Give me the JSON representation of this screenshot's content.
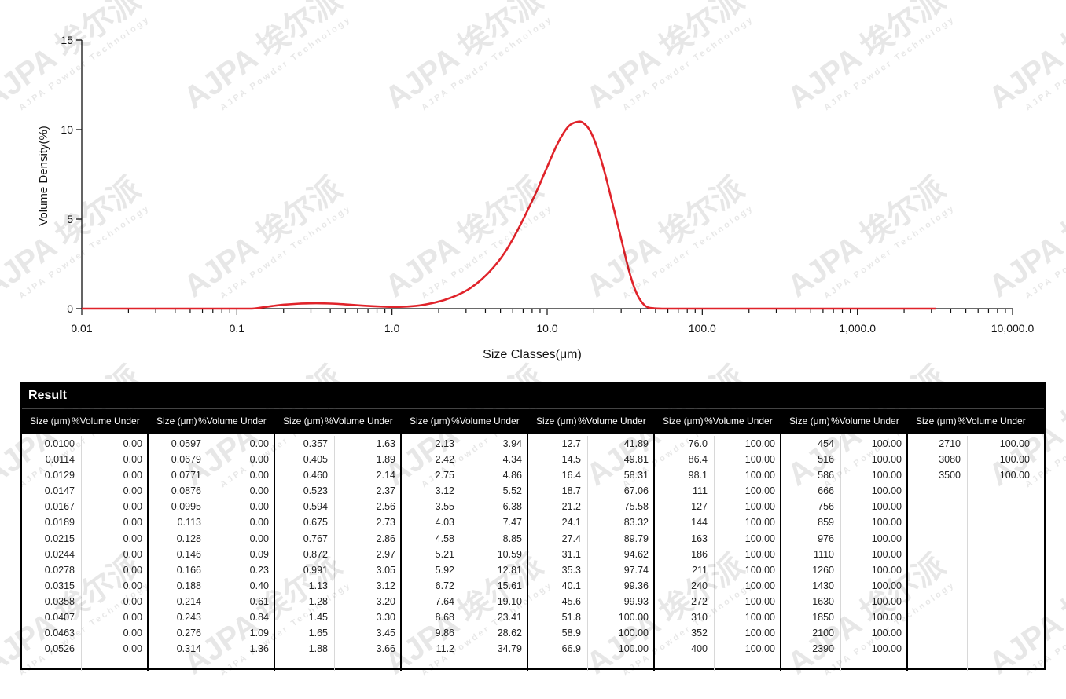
{
  "colors": {
    "curve": "#e0232a",
    "axis": "#111111",
    "header_bg": "#000000",
    "header_text": "#ffffff"
  },
  "watermark": {
    "brand": "AJPA",
    "chinese": "埃尔派",
    "sub": "AJPA Powder Technology"
  },
  "chart_data": {
    "type": "line",
    "xscale": "log",
    "xlim": [
      0.01,
      10000
    ],
    "ylim": [
      0,
      15
    ],
    "xlabel": "Size Classes(μm)",
    "ylabel": "Volume Density(%)",
    "x_ticks": [
      "0.01",
      "0.1",
      "1.0",
      "10.0",
      "100.0",
      "1,000.0",
      "10,000.0"
    ],
    "y_ticks": [
      "0",
      "5",
      "10",
      "15"
    ],
    "grid": false,
    "series": [
      {
        "x": [
          0.01,
          0.05,
          0.1,
          0.125,
          0.14,
          0.17,
          0.2,
          0.25,
          0.3,
          0.35,
          0.42,
          0.5,
          0.6,
          0.75,
          0.9,
          1.0,
          1.2,
          1.5,
          1.8,
          2.2,
          2.7,
          3.2,
          3.8,
          4.5,
          5.3,
          6.2,
          7.3,
          8.6,
          10.1,
          11.8,
          13.8,
          16.0,
          17.5,
          19.0,
          21.0,
          23.5,
          26.5,
          30.0,
          34.0,
          38.0,
          43.0,
          49.0,
          55.0,
          70.0,
          100.0,
          1000.0,
          3200.0
        ],
        "y": [
          0,
          0,
          0,
          0,
          0.05,
          0.15,
          0.22,
          0.28,
          0.3,
          0.3,
          0.28,
          0.24,
          0.19,
          0.14,
          0.11,
          0.1,
          0.11,
          0.18,
          0.3,
          0.5,
          0.8,
          1.15,
          1.65,
          2.3,
          3.1,
          4.1,
          5.3,
          6.6,
          8.0,
          9.3,
          10.2,
          10.45,
          10.3,
          9.9,
          9.0,
          7.6,
          5.8,
          3.9,
          2.0,
          0.8,
          0.15,
          0.02,
          0,
          0,
          0,
          0,
          0
        ]
      }
    ]
  },
  "result": {
    "title": "Result",
    "size_header": "Size (μm)",
    "volume_header": "%Volume Under",
    "columns": [
      {
        "sizes": [
          "0.0100",
          "0.0114",
          "0.0129",
          "0.0147",
          "0.0167",
          "0.0189",
          "0.0215",
          "0.0244",
          "0.0278",
          "0.0315",
          "0.0358",
          "0.0407",
          "0.0463",
          "0.0526"
        ],
        "volumes": [
          "0.00",
          "0.00",
          "0.00",
          "0.00",
          "0.00",
          "0.00",
          "0.00",
          "0.00",
          "0.00",
          "0.00",
          "0.00",
          "0.00",
          "0.00",
          "0.00"
        ]
      },
      {
        "sizes": [
          "0.0597",
          "0.0679",
          "0.0771",
          "0.0876",
          "0.0995",
          "0.113",
          "0.128",
          "0.146",
          "0.166",
          "0.188",
          "0.214",
          "0.243",
          "0.276",
          "0.314"
        ],
        "volumes": [
          "0.00",
          "0.00",
          "0.00",
          "0.00",
          "0.00",
          "0.00",
          "0.00",
          "0.09",
          "0.23",
          "0.40",
          "0.61",
          "0.84",
          "1.09",
          "1.36"
        ]
      },
      {
        "sizes": [
          "0.357",
          "0.405",
          "0.460",
          "0.523",
          "0.594",
          "0.675",
          "0.767",
          "0.872",
          "0.991",
          "1.13",
          "1.28",
          "1.45",
          "1.65",
          "1.88"
        ],
        "volumes": [
          "1.63",
          "1.89",
          "2.14",
          "2.37",
          "2.56",
          "2.73",
          "2.86",
          "2.97",
          "3.05",
          "3.12",
          "3.20",
          "3.30",
          "3.45",
          "3.66"
        ]
      },
      {
        "sizes": [
          "2.13",
          "2.42",
          "2.75",
          "3.12",
          "3.55",
          "4.03",
          "4.58",
          "5.21",
          "5.92",
          "6.72",
          "7.64",
          "8.68",
          "9.86",
          "11.2"
        ],
        "volumes": [
          "3.94",
          "4.34",
          "4.86",
          "5.52",
          "6.38",
          "7.47",
          "8.85",
          "10.59",
          "12.81",
          "15.61",
          "19.10",
          "23.41",
          "28.62",
          "34.79"
        ]
      },
      {
        "sizes": [
          "12.7",
          "14.5",
          "16.4",
          "18.7",
          "21.2",
          "24.1",
          "27.4",
          "31.1",
          "35.3",
          "40.1",
          "45.6",
          "51.8",
          "58.9",
          "66.9"
        ],
        "volumes": [
          "41.89",
          "49.81",
          "58.31",
          "67.06",
          "75.58",
          "83.32",
          "89.79",
          "94.62",
          "97.74",
          "99.36",
          "99.93",
          "100.00",
          "100.00",
          "100.00"
        ]
      },
      {
        "sizes": [
          "76.0",
          "86.4",
          "98.1",
          "111",
          "127",
          "144",
          "163",
          "186",
          "211",
          "240",
          "272",
          "310",
          "352",
          "400"
        ],
        "volumes": [
          "100.00",
          "100.00",
          "100.00",
          "100.00",
          "100.00",
          "100.00",
          "100.00",
          "100.00",
          "100.00",
          "100.00",
          "100.00",
          "100.00",
          "100.00",
          "100.00"
        ]
      },
      {
        "sizes": [
          "454",
          "516",
          "586",
          "666",
          "756",
          "859",
          "976",
          "1110",
          "1260",
          "1430",
          "1630",
          "1850",
          "2100",
          "2390"
        ],
        "volumes": [
          "100.00",
          "100.00",
          "100.00",
          "100.00",
          "100.00",
          "100.00",
          "100.00",
          "100.00",
          "100.00",
          "100.00",
          "100.00",
          "100.00",
          "100.00",
          "100.00"
        ]
      },
      {
        "sizes": [
          "2710",
          "3080",
          "3500"
        ],
        "volumes": [
          "100.00",
          "100.00",
          "100.00"
        ]
      }
    ]
  }
}
